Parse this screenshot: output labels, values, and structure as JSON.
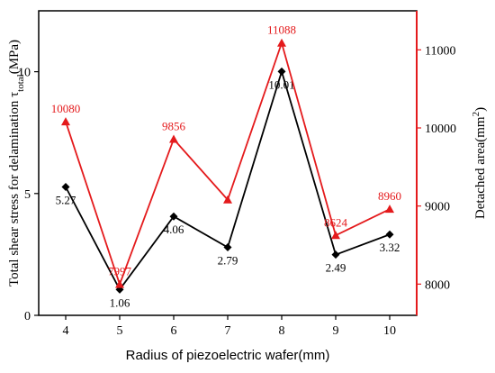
{
  "chart_data": {
    "type": "line",
    "x": [
      4,
      5,
      6,
      7,
      8,
      9,
      10
    ],
    "x_ticks": [
      "4",
      "5",
      "6",
      "7",
      "8",
      "9",
      "10"
    ],
    "xlabel": "Radius of piezoelectric wafer(mm)",
    "xlim": [
      3.5,
      10.5
    ],
    "ylabel_left": {
      "main": "Total shear stress for delamination τ",
      "sub": "total",
      "suffix": "(MPa)"
    },
    "ylim_left": [
      0,
      12.5
    ],
    "yticks_left": [
      0,
      5,
      10
    ],
    "ylabel_right": {
      "main": "Detached area(mm",
      "sup": "2",
      "suffix": ")"
    },
    "ylim_right": [
      7600,
      11500
    ],
    "yticks_right": [
      8000,
      9000,
      10000,
      11000
    ],
    "grid": false,
    "series": [
      {
        "axis": "left",
        "color": "#000000",
        "marker": "diamond",
        "values": [
          5.27,
          1.06,
          4.06,
          2.79,
          10.01,
          2.49,
          3.32
        ],
        "labels": [
          "5.27",
          "1.06",
          "4.06",
          "2.79",
          "10.01",
          "2.49",
          "3.32"
        ],
        "label_pos": [
          "below",
          "below",
          "below",
          "below",
          "below",
          "below",
          "below"
        ]
      },
      {
        "axis": "right",
        "color": "#e41a1c",
        "marker": "triangle",
        "values": [
          10080,
          7997,
          9856,
          9080,
          11088,
          8624,
          8960
        ],
        "labels": [
          "10080",
          "7997",
          "9856",
          "",
          "11088",
          "8624",
          "8960"
        ],
        "label_pos": [
          "above",
          "above",
          "above",
          "above",
          "above",
          "above",
          "above"
        ]
      }
    ]
  }
}
